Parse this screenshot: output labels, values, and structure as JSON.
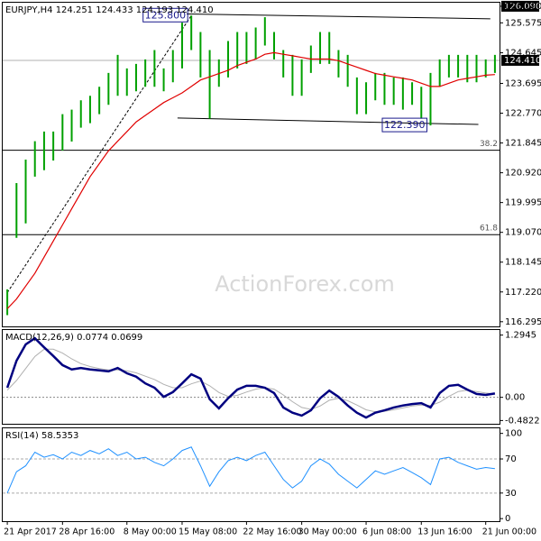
{
  "chart_data": [
    {
      "type": "hlbar",
      "title": "EURJPY,H4 124.251 124.433 124.193 124.410",
      "color": "#00a000",
      "categories": [
        "21 Apr 2017",
        null,
        null,
        null,
        null,
        null,
        "28 Apr 16:00",
        null,
        null,
        null,
        null,
        null,
        null,
        "8 May 00:00",
        null,
        null,
        null,
        null,
        null,
        "15 May 08:00",
        null,
        null,
        null,
        null,
        null,
        null,
        "22 May 16:00",
        null,
        null,
        null,
        null,
        null,
        "30 May 00:00",
        null,
        null,
        null,
        null,
        null,
        null,
        "6 Jun 08:00",
        null,
        null,
        null,
        null,
        null,
        "13 Jun 16:00",
        null,
        null,
        null,
        null,
        null,
        null,
        "21 Jun 00:00",
        null
      ],
      "high": [
        117.3,
        120.6,
        121.33,
        121.9,
        122.2,
        122.2,
        122.74,
        122.88,
        123.17,
        123.31,
        123.59,
        124.02,
        124.58,
        124.16,
        124.3,
        124.44,
        124.73,
        124.16,
        124.73,
        125.58,
        125.8,
        125.29,
        124.73,
        124.44,
        125.01,
        125.29,
        125.29,
        125.43,
        125.75,
        125.29,
        124.73,
        124.58,
        124.44,
        124.87,
        125.29,
        125.29,
        124.73,
        124.58,
        123.88,
        123.73,
        124.02,
        124.02,
        123.88,
        123.88,
        123.73,
        123.59,
        124.02,
        124.44,
        124.58,
        124.58,
        124.58,
        124.58,
        124.44,
        124.58
      ],
      "low": [
        116.5,
        118.9,
        119.35,
        120.8,
        121.0,
        121.3,
        121.61,
        121.89,
        122.32,
        122.46,
        122.74,
        123.03,
        123.31,
        123.31,
        123.45,
        123.59,
        123.59,
        123.45,
        123.73,
        124.16,
        124.73,
        123.88,
        122.6,
        123.59,
        123.88,
        124.16,
        124.3,
        124.44,
        124.87,
        124.44,
        123.88,
        123.31,
        123.31,
        124.02,
        124.3,
        124.3,
        123.88,
        123.59,
        122.74,
        122.74,
        123.17,
        123.03,
        123.03,
        122.88,
        123.03,
        122.6,
        122.39,
        123.59,
        123.88,
        123.88,
        123.73,
        123.73,
        123.88,
        124.02
      ],
      "ma": {
        "color": "#e00000",
        "values": [
          116.7,
          117.0,
          117.4,
          117.8,
          118.3,
          118.8,
          119.3,
          119.8,
          120.3,
          120.8,
          121.2,
          121.6,
          121.9,
          122.2,
          122.5,
          122.7,
          122.9,
          123.1,
          123.25,
          123.4,
          123.6,
          123.8,
          123.9,
          124.0,
          124.1,
          124.25,
          124.35,
          124.45,
          124.6,
          124.65,
          124.6,
          124.55,
          124.5,
          124.45,
          124.45,
          124.45,
          124.4,
          124.3,
          124.2,
          124.1,
          124.0,
          123.95,
          123.9,
          123.85,
          123.8,
          123.7,
          123.6,
          123.6,
          123.7,
          123.8,
          123.85,
          123.9,
          123.95,
          123.97
        ]
      },
      "ylim": [
        116.15,
        126.2
      ],
      "yticks": [
        {
          "value": 126.09,
          "label": "126.090"
        },
        125.575,
        124.645,
        123.695,
        {
          "value": 122.77,
          "label": "122.770"
        },
        121.845,
        {
          "value": 120.92,
          "label": "120.920"
        },
        119.995,
        {
          "value": 119.07,
          "label": "119.070"
        },
        118.145,
        {
          "value": 117.22,
          "label": "117.220"
        },
        116.295
      ],
      "levels": [
        {
          "value": 121.62,
          "label": "38.2"
        },
        {
          "value": 119.0,
          "label": "61.8"
        }
      ],
      "price_line": {
        "value": 124.41,
        "label": "124.410"
      },
      "high_marker": {
        "value": 126.09,
        "label": "126.090"
      },
      "annotations": [
        {
          "x": 20,
          "value": 125.8,
          "label": "125.800"
        },
        {
          "x": 46,
          "value": 122.39,
          "label": "122.390"
        }
      ],
      "trendlines": [
        {
          "x": [
            19.5,
            52.5
          ],
          "y": [
            125.85,
            125.7
          ],
          "dashed": false
        },
        {
          "x": [
            18.5,
            51.2
          ],
          "y": [
            122.62,
            122.42
          ],
          "dashed": false
        },
        {
          "x": [
            0,
            20
          ],
          "y": [
            117.2,
            125.8
          ],
          "dashed": true
        }
      ],
      "watermark": "ActionForex.com"
    },
    {
      "type": "macd",
      "title": "MACD(12,26,9) 0.0774 0.0699",
      "series": [
        {
          "color": "#000080",
          "values": [
            0.2,
            0.76,
            1.1,
            1.23,
            1.04,
            0.86,
            0.67,
            0.58,
            0.61,
            0.58,
            0.56,
            0.54,
            0.61,
            0.5,
            0.43,
            0.29,
            0.2,
            0.01,
            0.11,
            0.29,
            0.48,
            0.39,
            -0.04,
            -0.23,
            -0.02,
            0.16,
            0.24,
            0.24,
            0.2,
            0.09,
            -0.21,
            -0.32,
            -0.38,
            -0.27,
            -0.02,
            0.14,
            0.01,
            -0.17,
            -0.32,
            -0.42,
            -0.32,
            -0.27,
            -0.21,
            -0.17,
            -0.14,
            -0.12,
            -0.21,
            0.09,
            0.24,
            0.26,
            0.16,
            0.07,
            0.05,
            0.08
          ]
        },
        {
          "color": "#b0b0b0",
          "values": [
            0.15,
            0.35,
            0.6,
            0.85,
            1.0,
            1.0,
            0.92,
            0.8,
            0.7,
            0.64,
            0.6,
            0.57,
            0.57,
            0.55,
            0.51,
            0.44,
            0.37,
            0.27,
            0.2,
            0.2,
            0.28,
            0.34,
            0.24,
            0.1,
            0.02,
            0.04,
            0.11,
            0.17,
            0.2,
            0.17,
            0.05,
            -0.09,
            -0.21,
            -0.25,
            -0.18,
            -0.06,
            -0.02,
            -0.07,
            -0.16,
            -0.26,
            -0.3,
            -0.29,
            -0.26,
            -0.22,
            -0.18,
            -0.16,
            -0.17,
            -0.1,
            0.02,
            0.12,
            0.15,
            0.12,
            0.09,
            0.07
          ]
        }
      ],
      "ylim": [
        -0.55,
        1.4
      ],
      "yticks": [
        1.2945,
        {
          "value": 0,
          "label": "0.00"
        },
        -0.4822
      ],
      "levels": [
        0
      ]
    },
    {
      "type": "rsi",
      "title": "RSI(14) 58.5353",
      "series": [
        {
          "color": "#1e90ff",
          "values": [
            30,
            55,
            62,
            78,
            72,
            75,
            70,
            78,
            74,
            80,
            76,
            82,
            74,
            78,
            70,
            72,
            66,
            62,
            70,
            80,
            84,
            62,
            38,
            55,
            68,
            72,
            68,
            74,
            78,
            62,
            46,
            36,
            44,
            62,
            70,
            64,
            52,
            44,
            36,
            46,
            56,
            52,
            56,
            60,
            54,
            48,
            40,
            70,
            72,
            66,
            62,
            58,
            60,
            58.54
          ]
        }
      ],
      "ylim": [
        -3,
        106
      ],
      "yticks": [
        100,
        70,
        30,
        0
      ],
      "levels": [
        70,
        30
      ]
    }
  ]
}
